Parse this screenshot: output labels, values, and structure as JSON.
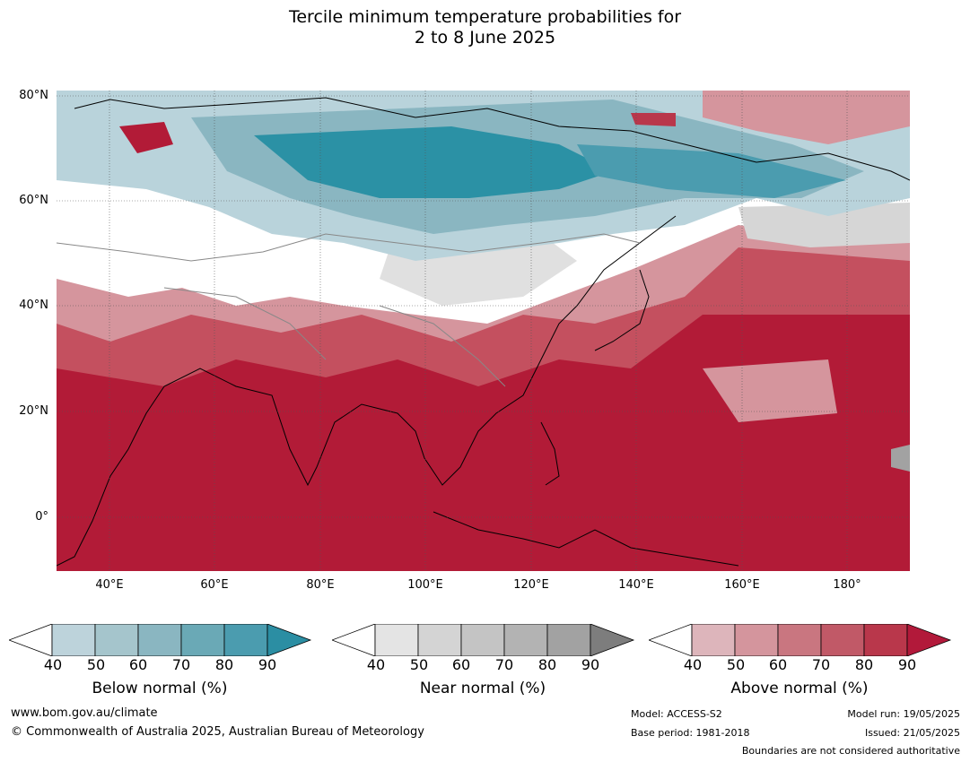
{
  "title": {
    "line1": "Tercile minimum temperature probabilities for",
    "line2": "2 to 8 June 2025"
  },
  "map": {
    "lat_labels": [
      "80°N",
      "60°N",
      "40°N",
      "20°N",
      "0°"
    ],
    "lon_labels": [
      "40°E",
      "60°E",
      "80°E",
      "100°E",
      "120°E",
      "140°E",
      "160°E",
      "180°"
    ],
    "extent": {
      "lon_min": 30,
      "lon_max": 192,
      "lat_min": -10,
      "lat_max": 81
    },
    "land_colors": {
      "above_90": "#b21b37",
      "above_70": "#c4505f",
      "above_50": "#d5959d",
      "near_normal": "#d6d6d6",
      "below_60": "#b9d3db",
      "below_80": "#5ea6b6",
      "below_90": "#2b91a5",
      "white": "#ffffff"
    }
  },
  "legends": [
    {
      "title": "Below normal (%)",
      "ticks": [
        "40",
        "50",
        "60",
        "70",
        "80",
        "90"
      ],
      "colors": [
        "#ffffff",
        "#bdd3db",
        "#a5c5cc",
        "#8ab6c1",
        "#6aa9b6",
        "#4b9caf",
        "#2b8ea3"
      ]
    },
    {
      "title": "Near normal (%)",
      "ticks": [
        "40",
        "50",
        "60",
        "70",
        "80",
        "90"
      ],
      "colors": [
        "#ffffff",
        "#e4e4e4",
        "#d4d4d4",
        "#c4c4c4",
        "#b3b3b3",
        "#a2a2a2",
        "#7d7d7d"
      ]
    },
    {
      "title": "Above normal (%)",
      "ticks": [
        "40",
        "50",
        "60",
        "70",
        "80",
        "90"
      ],
      "colors": [
        "#ffffff",
        "#ddb5bb",
        "#d4959d",
        "#c97680",
        "#c15967",
        "#b9374b",
        "#b2193a"
      ]
    }
  ],
  "footer": {
    "website": "www.bom.gov.au/climate",
    "copyright": "© Commonwealth of Australia 2025, Australian Bureau of Meteorology",
    "model": "Model: ACCESS-S2",
    "base_period": "Base period: 1981-2018",
    "model_run": "Model run: 19/05/2025",
    "issued": "Issued: 21/05/2025",
    "disclaimer": "Boundaries are not considered authoritative"
  }
}
